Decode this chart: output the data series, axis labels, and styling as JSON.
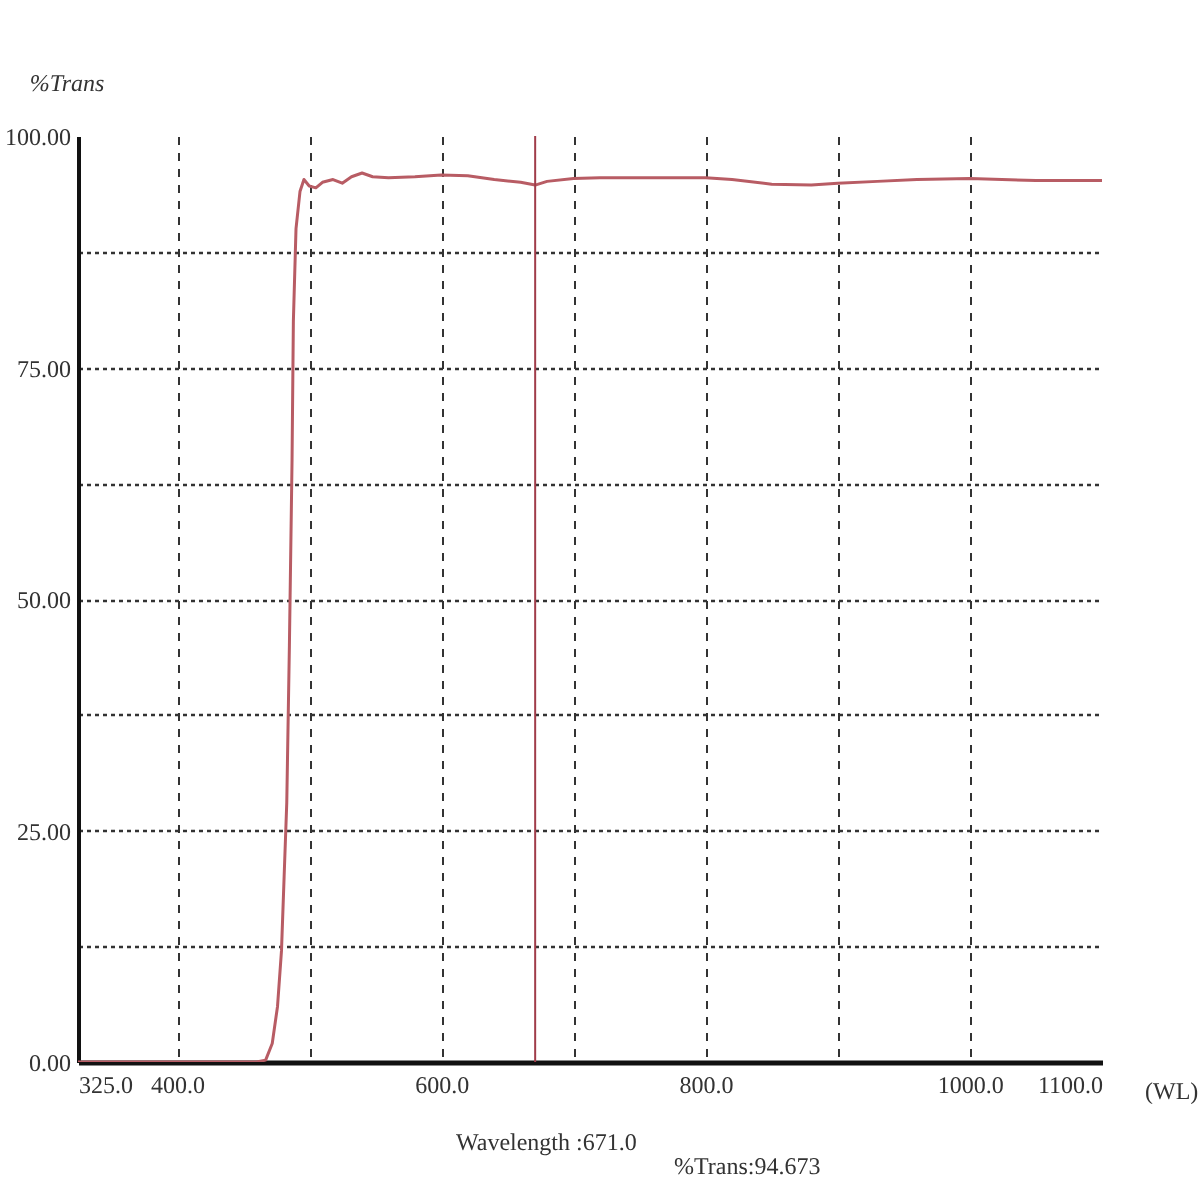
{
  "chart_data": {
    "type": "line",
    "xlabel": "(WL)",
    "ylabel": "%Trans",
    "annotations": [
      "Wavelength :671.0",
      "%Trans:94.673"
    ],
    "x": [
      325,
      460,
      467,
      472,
      476,
      479,
      481,
      483,
      485,
      487,
      488,
      490,
      493,
      496,
      500,
      505,
      510,
      518,
      525,
      532,
      540,
      548,
      560,
      580,
      600,
      620,
      640,
      660,
      671,
      680,
      700,
      720,
      750,
      800,
      820,
      850,
      880,
      900,
      930,
      960,
      1000,
      1050,
      1100
    ],
    "series": [
      {
        "color": "#b85c64",
        "values": [
          0,
          0,
          0.2,
          2,
          6,
          12,
          20,
          28,
          45,
          65,
          80,
          90,
          94,
          95.3,
          94.6,
          94.4,
          95.0,
          95.3,
          94.9,
          95.6,
          96.0,
          95.6,
          95.5,
          95.6,
          95.8,
          95.7,
          95.3,
          95.0,
          94.7,
          95.1,
          95.4,
          95.5,
          95.5,
          95.5,
          95.3,
          94.8,
          94.7,
          94.9,
          95.1,
          95.3,
          95.4,
          95.2,
          95.2
        ]
      }
    ],
    "xlim": [
      325,
      1100
    ],
    "xticks": [
      {
        "value": 325,
        "label": "325.0"
      },
      {
        "value": 400,
        "label": "400.0"
      },
      {
        "value": 500,
        "label": null
      },
      {
        "value": 600,
        "label": "600.0"
      },
      {
        "value": 700,
        "label": null
      },
      {
        "value": 800,
        "label": "800.0"
      },
      {
        "value": 900,
        "label": null
      },
      {
        "value": 1000,
        "label": "1000.0"
      },
      {
        "value": 1100,
        "label": "1100.0"
      }
    ],
    "ylim": [
      0,
      100
    ],
    "yticks": [
      {
        "value": 0,
        "label": "0.00"
      },
      {
        "value": 12.5,
        "label": null
      },
      {
        "value": 25,
        "label": "25.00"
      },
      {
        "value": 37.5,
        "label": null
      },
      {
        "value": 50,
        "label": "50.00"
      },
      {
        "value": 62.5,
        "label": null
      },
      {
        "value": 75,
        "label": "75.00"
      },
      {
        "value": 87.5,
        "label": null
      },
      {
        "value": 100,
        "label": "100.00"
      }
    ],
    "grid": true,
    "marker": "none",
    "line_style": "solid",
    "ref_lines": [
      {
        "axis": "x",
        "value": 671,
        "color": "#a03c4a"
      }
    ]
  }
}
